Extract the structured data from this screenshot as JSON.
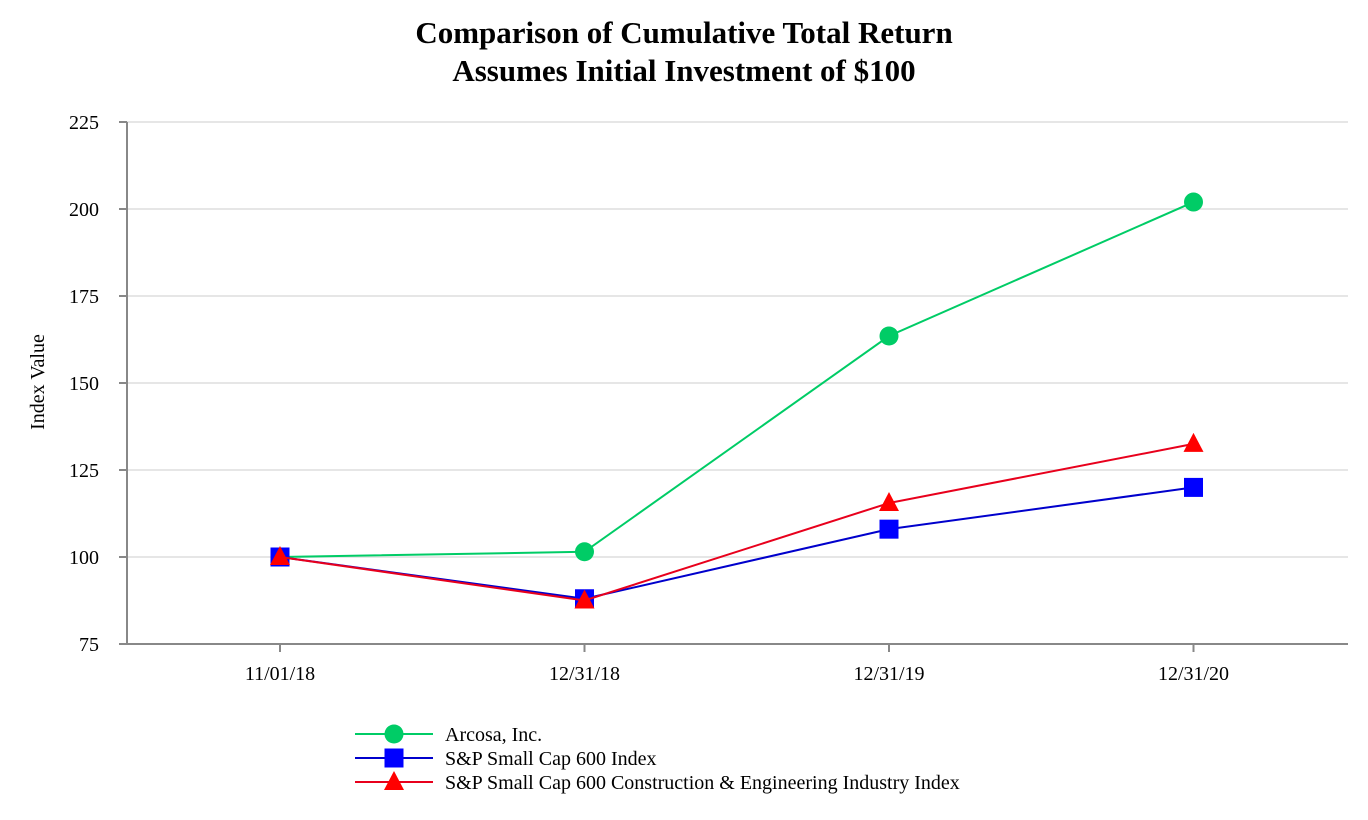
{
  "chart_data": {
    "type": "line",
    "title": "Comparison of Cumulative Total Return",
    "subtitle": "Assumes Initial Investment of $100",
    "xlabel": "",
    "ylabel": "Index Value",
    "categories": [
      "11/01/18",
      "12/31/18",
      "12/31/19",
      "12/31/20"
    ],
    "ylim": [
      75,
      225
    ],
    "yticks": [
      75,
      100,
      125,
      150,
      175,
      200,
      225
    ],
    "grid": true,
    "legend_position": "bottom",
    "series": [
      {
        "name": "Arcosa, Inc.",
        "values": [
          100,
          101.5,
          163.5,
          202
        ],
        "color": "#00cc66",
        "marker": "circle"
      },
      {
        "name": "S&P Small Cap 600 Index",
        "values": [
          100,
          88,
          108,
          120
        ],
        "color": "#0000ff",
        "marker": "square",
        "line_color": "#0000cc"
      },
      {
        "name": "S&P Small Cap 600 Construction & Engineering Industry Index",
        "values": [
          100,
          87.5,
          115.5,
          132.5
        ],
        "color": "#ff0000",
        "marker": "triangle",
        "line_color": "#e8001c"
      }
    ]
  }
}
